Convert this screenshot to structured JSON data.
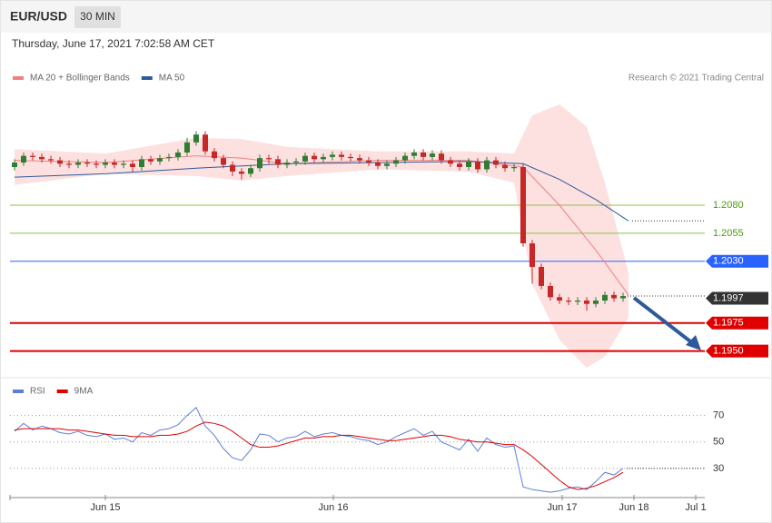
{
  "header": {
    "symbol": "EUR/USD",
    "interval": "30 MIN",
    "timestamp": "Thursday, June 17, 2021 7:02:58 AM CET",
    "credit": "Research © 2021 Trading Central"
  },
  "chart_data": [
    {
      "type": "candlestick",
      "xlim": [
        -0.5,
        76
      ],
      "ylim": [
        1.1927,
        1.2182
      ],
      "up_color": "#2e7d32",
      "down_color": "#c62828",
      "open": [
        1.2114,
        1.2118,
        1.2124,
        1.2123,
        1.2121,
        1.212,
        1.2117,
        1.2116,
        1.2118,
        1.2117,
        1.2116,
        1.2118,
        1.2116,
        1.2117,
        1.2114,
        1.2121,
        1.2119,
        1.2122,
        1.2123,
        1.2127,
        1.2136,
        1.2143,
        1.2128,
        1.2122,
        1.2116,
        1.211,
        1.2108,
        1.2113,
        1.2122,
        1.2121,
        1.2116,
        1.2118,
        1.2119,
        1.2124,
        1.2121,
        1.2123,
        1.2125,
        1.2123,
        1.2122,
        1.212,
        1.2118,
        1.2115,
        1.2117,
        1.212,
        1.2124,
        1.2127,
        1.2123,
        1.2126,
        1.212,
        1.2117,
        1.2114,
        1.2119,
        1.2112,
        1.212,
        1.2116,
        1.2113,
        1.2114,
        1.2046,
        1.2025,
        1.2008,
        1.1998,
        1.1995,
        1.1994,
        1.1995,
        1.1992,
        1.1995,
        1.2,
        1.1997
      ],
      "high": [
        1.2121,
        1.2127,
        1.2127,
        1.2126,
        1.2124,
        1.2123,
        1.212,
        1.2121,
        1.2121,
        1.212,
        1.2121,
        1.2121,
        1.212,
        1.212,
        1.2124,
        1.2124,
        1.2125,
        1.2126,
        1.213,
        1.214,
        1.2146,
        1.2146,
        1.2131,
        1.2125,
        1.2119,
        1.2113,
        1.2116,
        1.2125,
        1.2125,
        1.2124,
        1.2121,
        1.2122,
        1.2127,
        1.2127,
        1.2126,
        1.2128,
        1.2128,
        1.2126,
        1.2125,
        1.2123,
        1.2121,
        1.212,
        1.2123,
        1.2127,
        1.213,
        1.213,
        1.2129,
        1.2129,
        1.2123,
        1.212,
        1.2122,
        1.2122,
        1.2123,
        1.2123,
        1.2119,
        1.2117,
        1.2117,
        1.2049,
        1.2028,
        1.2011,
        1.2001,
        1.1998,
        1.1998,
        1.1998,
        1.1998,
        1.2003,
        1.2003,
        1.2002
      ],
      "low": [
        1.2111,
        1.2115,
        1.212,
        1.2118,
        1.2117,
        1.2114,
        1.2113,
        1.2113,
        1.2114,
        1.2113,
        1.2113,
        1.2113,
        1.2113,
        1.211,
        1.2111,
        1.2116,
        1.2116,
        1.2119,
        1.212,
        1.2124,
        1.2133,
        1.2125,
        1.2119,
        1.2113,
        1.2106,
        1.2103,
        1.2105,
        1.211,
        1.2117,
        1.2113,
        1.2113,
        1.2115,
        1.2116,
        1.2118,
        1.2118,
        1.212,
        1.212,
        1.2119,
        1.2117,
        1.2115,
        1.2112,
        1.2112,
        1.2114,
        1.2117,
        1.2121,
        1.212,
        1.212,
        1.2117,
        1.2114,
        1.2111,
        1.2111,
        1.2109,
        1.2109,
        1.2113,
        1.211,
        1.211,
        1.2043,
        1.201,
        1.2005,
        1.1995,
        1.1992,
        1.1991,
        1.1991,
        1.1986,
        1.1989,
        1.1992,
        1.1994,
        1.1994
      ],
      "close": [
        1.2118,
        1.2124,
        1.2123,
        1.2121,
        1.212,
        1.2117,
        1.2116,
        1.2118,
        1.2117,
        1.2116,
        1.2118,
        1.2116,
        1.2117,
        1.2114,
        1.2121,
        1.2119,
        1.2122,
        1.2123,
        1.2127,
        1.2136,
        1.2143,
        1.2128,
        1.2122,
        1.2116,
        1.211,
        1.2108,
        1.2113,
        1.2122,
        1.2121,
        1.2116,
        1.2118,
        1.2119,
        1.2124,
        1.2121,
        1.2123,
        1.2125,
        1.2123,
        1.2122,
        1.212,
        1.2118,
        1.2115,
        1.2117,
        1.212,
        1.2124,
        1.2127,
        1.2123,
        1.2126,
        1.212,
        1.2117,
        1.2114,
        1.2119,
        1.2112,
        1.212,
        1.2116,
        1.2113,
        1.2114,
        1.2046,
        1.2025,
        1.2008,
        1.1998,
        1.1995,
        1.1994,
        1.1995,
        1.1992,
        1.1995,
        1.2,
        1.1997,
        1.1999
      ],
      "bollinger": {
        "color": "#fde0e0",
        "x": [
          0,
          10,
          20,
          25,
          30,
          40,
          50,
          55,
          57,
          60,
          63,
          65,
          67.6
        ],
        "upper": [
          1.213,
          1.2126,
          1.214,
          1.2139,
          1.2132,
          1.2128,
          1.2128,
          1.2126,
          1.216,
          1.217,
          1.215,
          1.21,
          1.202
        ],
        "lower": [
          1.2098,
          1.2108,
          1.2106,
          1.2102,
          1.2106,
          1.2112,
          1.211,
          1.21,
          1.201,
          1.196,
          1.1935,
          1.1945,
          1.198
        ]
      },
      "series": [
        {
          "name": "MA 20 + Bollinger Bands",
          "color": "#f08080",
          "x": [
            0,
            10,
            20,
            25,
            30,
            40,
            50,
            56,
            60,
            64,
            67.6
          ],
          "values": [
            1.212,
            1.2118,
            1.2124,
            1.2122,
            1.2117,
            1.212,
            1.212,
            1.2114,
            1.208,
            1.204,
            1.2
          ]
        },
        {
          "name": "MA 50",
          "color": "#2e5a9c",
          "x": [
            0,
            10,
            20,
            30,
            40,
            50,
            56,
            60,
            64,
            67.6
          ],
          "values": [
            1.2105,
            1.2108,
            1.2113,
            1.2117,
            1.2118,
            1.2119,
            1.2117,
            1.2103,
            1.2085,
            1.2066
          ]
        }
      ],
      "levels": [
        {
          "value": 1.208,
          "label": "1.2080",
          "color": "#8bc34a",
          "text_color": "#4c9a0e",
          "style": "text"
        },
        {
          "value": 1.2055,
          "color": "#8bc34a",
          "text_color": "#4c9a0e",
          "style": "text"
        },
        {
          "value": 1.203,
          "label": "1.2030",
          "color": "#2962ff",
          "text_color": "#ffffff",
          "style": "box"
        },
        {
          "value": 1.1997,
          "color": "#333333",
          "text_color": "#ffffff",
          "style": "box",
          "dotted": true
        },
        {
          "value": 1.1975,
          "color": "#e00000",
          "text_color": "#ffffff",
          "style": "box"
        },
        {
          "value": 1.195,
          "label": "1.1950",
          "color": "#e00000",
          "text_color": "#ffffff",
          "style": "box"
        }
      ]
    },
    {
      "type": "line",
      "xlim": [
        -0.5,
        76
      ],
      "ylim": [
        10,
        80
      ],
      "yticks": [
        30,
        50,
        70
      ],
      "xticks": [
        {
          "value": 10,
          "label": "Jun 15"
        },
        {
          "value": 35.1,
          "label": "Jun 16"
        },
        {
          "value": 60.3,
          "label": "Jun 17"
        },
        {
          "value": 68.2,
          "label": "Jun 18"
        },
        {
          "value": 75,
          "label": "Jul 1"
        }
      ],
      "series": [
        {
          "name": "RSI",
          "color": "#5b7fd6",
          "values": [
            58,
            64,
            59,
            62,
            60,
            57,
            56,
            58,
            55,
            54,
            56,
            52,
            53,
            50,
            57,
            55,
            59,
            60,
            63,
            70,
            76,
            62,
            55,
            45,
            38,
            36,
            44,
            56,
            55,
            50,
            53,
            54,
            58,
            54,
            56,
            57,
            55,
            54,
            52,
            51,
            48,
            50,
            54,
            57,
            60,
            55,
            58,
            50,
            47,
            44,
            52,
            43,
            53,
            48,
            46,
            47,
            16,
            14,
            13,
            12,
            13,
            15,
            16,
            14,
            20,
            27,
            25,
            30
          ]
        },
        {
          "name": "9MA",
          "color": "#e00000",
          "values": [
            59,
            60,
            60,
            60,
            60,
            60,
            59,
            59,
            58,
            57,
            56,
            55,
            55,
            54,
            54,
            54,
            55,
            55,
            56,
            58,
            62,
            65,
            64,
            62,
            58,
            53,
            48,
            46,
            46,
            47,
            49,
            51,
            53,
            53,
            54,
            54,
            55,
            55,
            54,
            53,
            52,
            51,
            51,
            52,
            53,
            54,
            55,
            55,
            54,
            52,
            51,
            50,
            50,
            49,
            48,
            48,
            44,
            39,
            33,
            27,
            21,
            16,
            14,
            15,
            17,
            20,
            23,
            27
          ]
        }
      ]
    }
  ]
}
